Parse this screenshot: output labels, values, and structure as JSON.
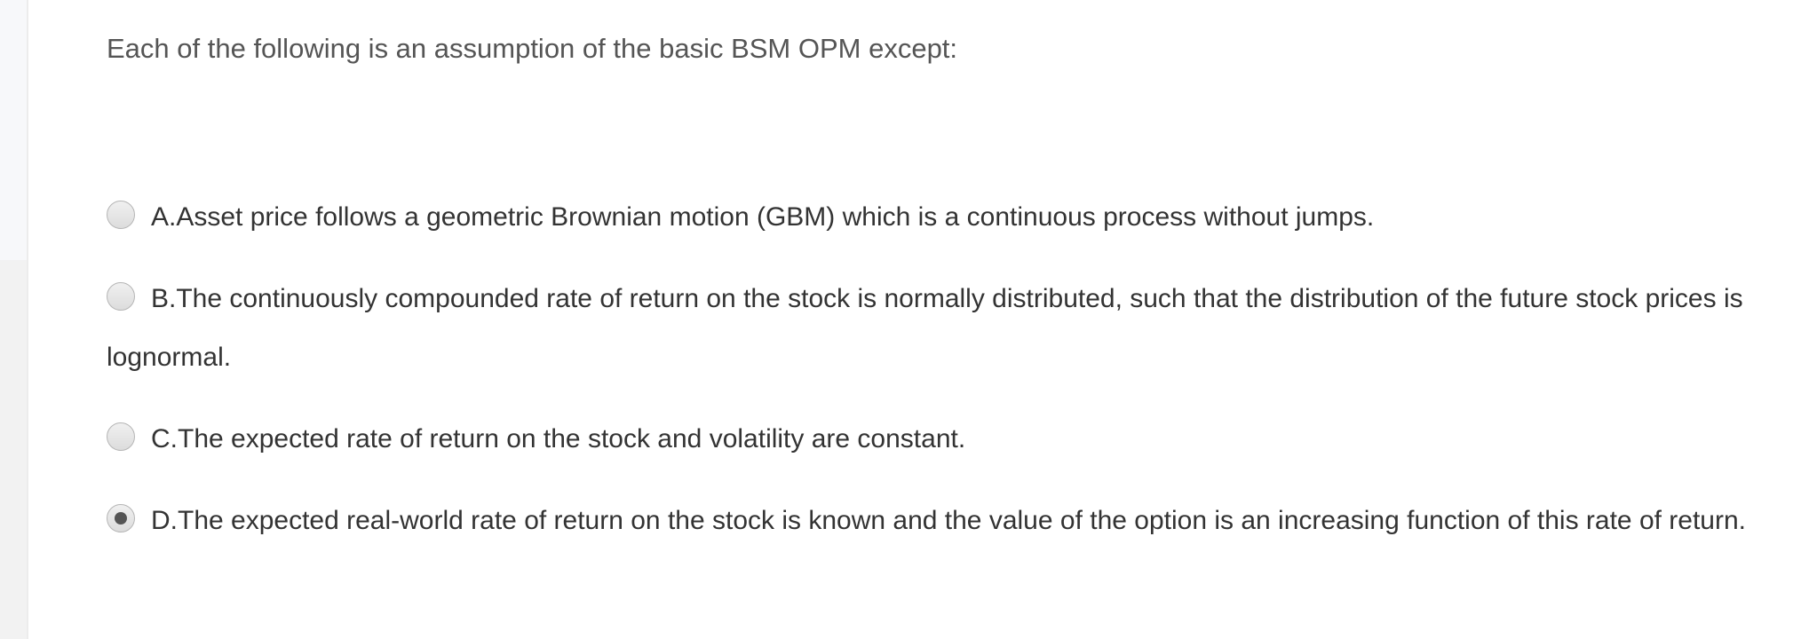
{
  "question": "Each of the following is an assumption of the basic BSM OPM except:",
  "options": [
    {
      "label": "A.Asset price follows a geometric Brownian motion (GBM) which is a continuous process without jumps.",
      "selected": false
    },
    {
      "label": "B.The continuously compounded rate of return on the stock is normally distributed, such that the distribution of the future stock prices is lognormal.",
      "selected": false
    },
    {
      "label": "C.The expected rate of return on the stock and volatility are constant.",
      "selected": false
    },
    {
      "label": "D.The expected real-world rate of return on the stock is known and the value of the option is an increasing function of this rate of return.",
      "selected": true
    }
  ]
}
